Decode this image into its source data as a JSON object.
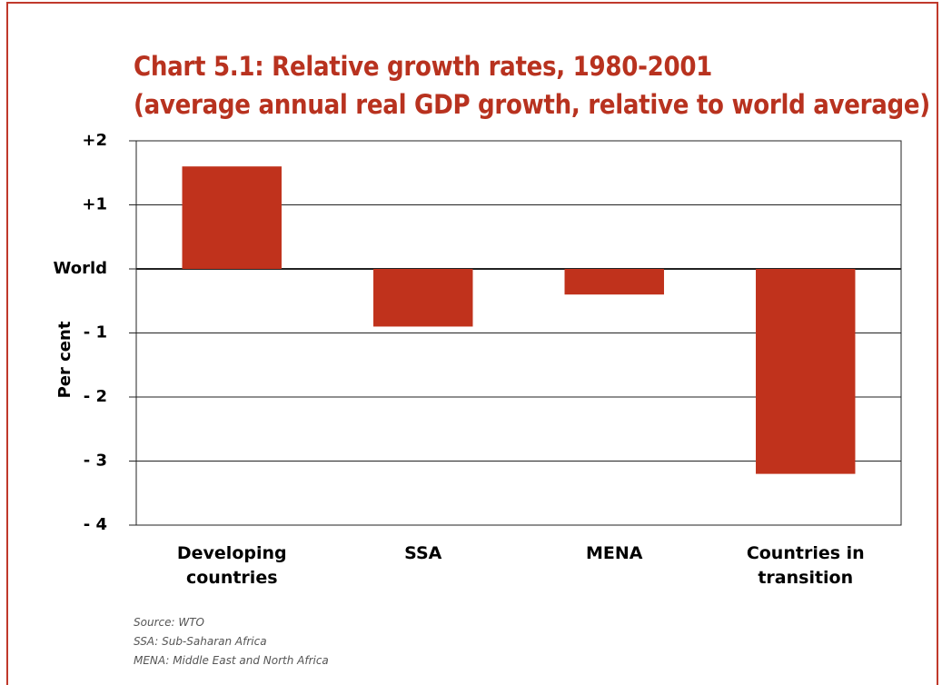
{
  "chart_data": {
    "type": "bar",
    "title": "Chart 5.1: Relative growth rates, 1980-2001",
    "subtitle": "(average annual real GDP growth, relative to world average)",
    "y_label": "Per cent",
    "categories": [
      "Developing countries",
      "SSA",
      "MENA",
      "Countries in transition"
    ],
    "values": [
      1.6,
      -0.9,
      -0.4,
      -3.2
    ],
    "color": "#c0321c",
    "ylim": [
      -4,
      2
    ],
    "yticks": [
      {
        "value": -4,
        "label": "- 4"
      },
      {
        "value": -3,
        "label": "- 3"
      },
      {
        "value": -2,
        "label": "- 2"
      },
      {
        "value": -1,
        "label": "- 1"
      },
      {
        "value": 0,
        "label": "World"
      },
      {
        "value": 1,
        "label": "+1"
      },
      {
        "value": 2,
        "label": "+2"
      }
    ],
    "grid": true,
    "notes": [
      "Source: WTO",
      "SSA: Sub-Saharan Africa",
      "MENA: Middle East and North Africa"
    ]
  }
}
